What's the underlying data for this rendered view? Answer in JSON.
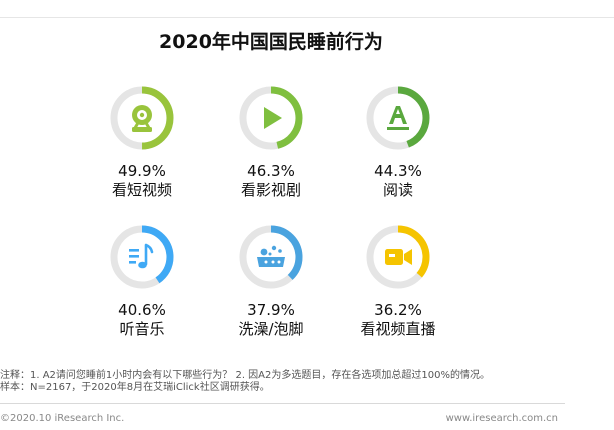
{
  "title": "2020年中国国民睡前行为",
  "chart_data": {
    "type": "pie",
    "title": "2020年中国国民睡前行为",
    "unit": "%",
    "categories": [
      "看短视频",
      "看影视剧",
      "阅读",
      "听音乐",
      "洗澡/泡脚",
      "看视频直播"
    ],
    "values": [
      49.9,
      46.3,
      44.3,
      40.6,
      37.9,
      36.2
    ],
    "value_labels": [
      "49.9%",
      "46.3%",
      "44.3%",
      "40.6%",
      "37.9%",
      "36.2%"
    ],
    "colors": [
      "#99c43c",
      "#7fbf3f",
      "#5aa83e",
      "#3fa9f5",
      "#4aa3df",
      "#f5c400"
    ],
    "icons": [
      "webcam-icon",
      "play-icon",
      "text-a-icon",
      "music-list-icon",
      "bath-icon",
      "video-camera-icon"
    ],
    "track_color": "#e5e5e5"
  },
  "notes": {
    "line1": "注释：1. A2请问您睡前1小时内会有以下哪些行为？ 2. 因A2为多选题目，存在各选项加总超过100%的情况。",
    "line2": "样本：N=2167，于2020年8月在艾瑞iClick社区调研获得。"
  },
  "footer": {
    "copyright": "©2020.10 iResearch Inc.",
    "website": "www.iresearch.com.cn"
  }
}
